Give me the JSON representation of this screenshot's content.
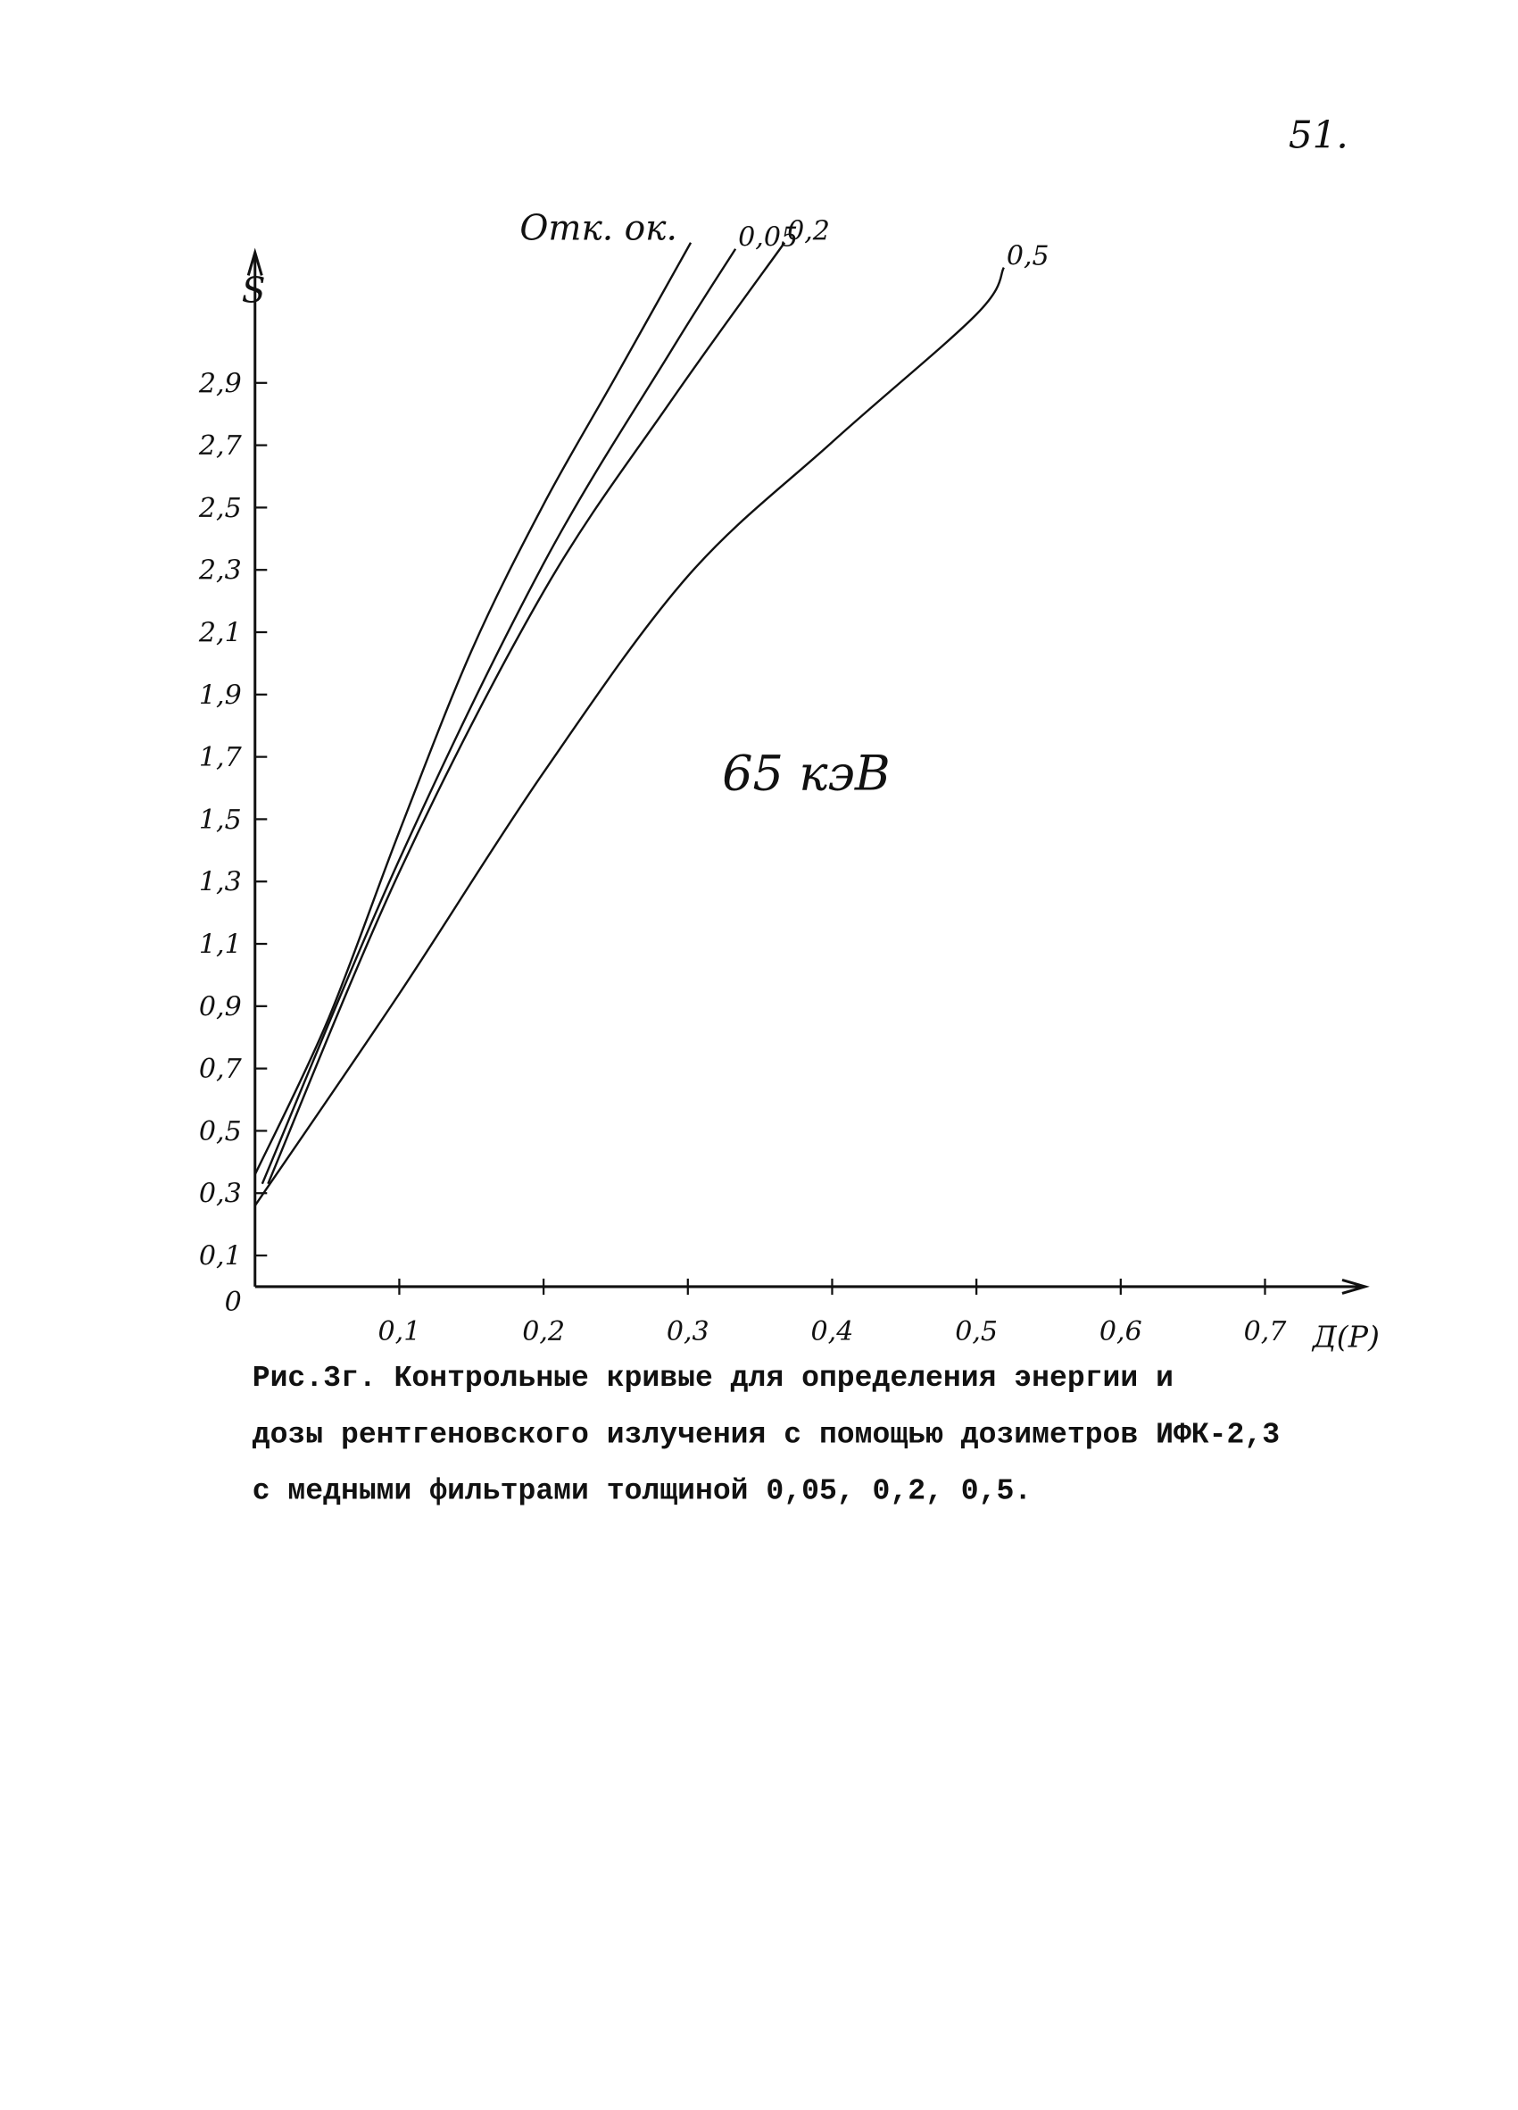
{
  "page_number": "51.",
  "chart_data": {
    "type": "line",
    "ylabel": "S",
    "xlabel": "Д(Р)",
    "annotation": "65 кэВ",
    "xlim": [
      0,
      0.77
    ],
    "ylim": [
      0,
      3.4
    ],
    "xticks": [
      {
        "value": 0.1,
        "label": "0,1"
      },
      {
        "value": 0.2,
        "label": "0,2"
      },
      {
        "value": 0.3,
        "label": "0,3"
      },
      {
        "value": 0.4,
        "label": "0,4"
      },
      {
        "value": 0.5,
        "label": "0,5"
      },
      {
        "value": 0.6,
        "label": "0,6"
      },
      {
        "value": 0.7,
        "label": "0,7"
      }
    ],
    "yticks": [
      0,
      {
        "value": 0.1,
        "label": "0,1"
      },
      {
        "value": 0.3,
        "label": "0,3"
      },
      {
        "value": 0.5,
        "label": "0,5"
      },
      {
        "value": 0.7,
        "label": "0,7"
      },
      {
        "value": 0.9,
        "label": "0,9"
      },
      {
        "value": 1.1,
        "label": "1,1"
      },
      {
        "value": 1.3,
        "label": "1,3"
      },
      {
        "value": 1.5,
        "label": "1,5"
      },
      {
        "value": 1.7,
        "label": "1,7"
      },
      {
        "value": 1.9,
        "label": "1,9"
      },
      {
        "value": 2.1,
        "label": "2,1"
      },
      {
        "value": 2.3,
        "label": "2,3"
      },
      {
        "value": 2.5,
        "label": "2,5"
      },
      {
        "value": 2.7,
        "label": "2,7"
      },
      {
        "value": 2.9,
        "label": "2,9"
      }
    ],
    "series": [
      {
        "name": "Отк. ок.",
        "color": "#111111",
        "x": [
          0,
          0.05,
          0.1,
          0.15,
          0.2,
          0.25,
          0.302
        ],
        "values": [
          0.36,
          0.85,
          1.46,
          2.04,
          2.51,
          2.92,
          3.35
        ]
      },
      {
        "name": "0,05",
        "color": "#111111",
        "x": [
          0.005,
          0.1,
          0.2,
          0.288,
          0.333
        ],
        "values": [
          0.33,
          1.37,
          2.32,
          3.0,
          3.33
        ]
      },
      {
        "name": "0,2",
        "color": "#111111",
        "x": [
          0.009,
          0.1,
          0.2,
          0.288,
          0.367
        ],
        "values": [
          0.33,
          1.33,
          2.23,
          2.84,
          3.35
        ]
      },
      {
        "name": "0,5",
        "color": "#111111",
        "x": [
          0,
          0.1,
          0.2,
          0.3,
          0.4,
          0.5,
          0.519
        ],
        "values": [
          0.26,
          0.94,
          1.65,
          2.28,
          2.71,
          3.12,
          3.27
        ]
      }
    ]
  },
  "caption": [
    "Рис.3г. Контрольные кривые для определения энергии и",
    "дозы рентгеновского излучения с помощью дозиметров ИФК-2,3",
    "с медными фильтрами толщиной 0,05, 0,2, 0,5."
  ]
}
